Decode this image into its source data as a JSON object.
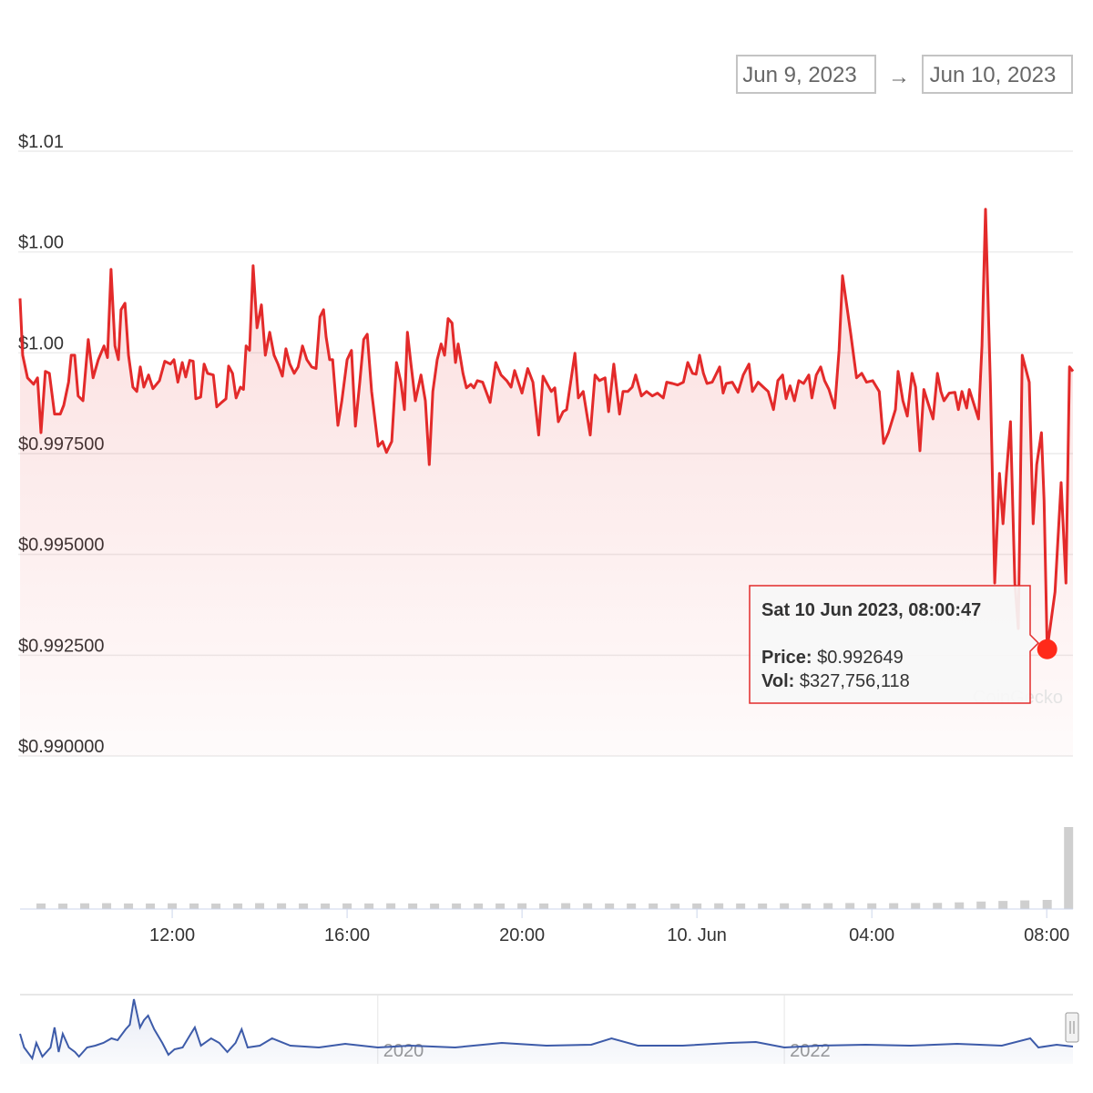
{
  "chart_data": {
    "type": "line",
    "date_range": {
      "from": "Jun 9, 2023",
      "separator": "→",
      "to": "Jun 10, 2023"
    },
    "color": "#e32a2a",
    "xlim": [
      8.52,
      32.6
    ],
    "xticks": [
      {
        "value": 12,
        "label": "12:00"
      },
      {
        "value": 16,
        "label": "16:00"
      },
      {
        "value": 20,
        "label": "20:00"
      },
      {
        "value": 24,
        "label": "10. Jun"
      },
      {
        "value": 28,
        "label": "04:00"
      },
      {
        "value": 32,
        "label": "08:00"
      }
    ],
    "ylim": [
      0.99,
      1.005
    ],
    "yticks": [
      {
        "value": 0.99,
        "label": "$0.990000"
      },
      {
        "value": 0.9925,
        "label": "$0.992500"
      },
      {
        "value": 0.995,
        "label": "$0.995000"
      },
      {
        "value": 0.9975,
        "label": "$0.997500"
      },
      {
        "value": 1.0,
        "label": "$1.00"
      },
      {
        "value": 1.0025,
        "label": "$1.00"
      },
      {
        "value": 1.005,
        "label": "$1.01"
      }
    ],
    "grid": true,
    "x": [
      8.52,
      8.58,
      8.69,
      8.83,
      8.92,
      9.0,
      9.1,
      9.19,
      9.31,
      9.44,
      9.52,
      9.63,
      9.69,
      9.77,
      9.85,
      9.96,
      10.08,
      10.19,
      10.31,
      10.44,
      10.52,
      10.6,
      10.69,
      10.77,
      10.83,
      10.92,
      11.0,
      11.1,
      11.19,
      11.27,
      11.35,
      11.46,
      11.56,
      11.71,
      11.83,
      11.96,
      12.04,
      12.13,
      12.23,
      12.31,
      12.4,
      12.48,
      12.54,
      12.65,
      12.73,
      12.81,
      12.94,
      13.02,
      13.13,
      13.23,
      13.29,
      13.38,
      13.46,
      13.56,
      13.63,
      13.69,
      13.77,
      13.85,
      13.94,
      14.04,
      14.13,
      14.23,
      14.33,
      14.42,
      14.52,
      14.6,
      14.69,
      14.79,
      14.88,
      14.98,
      15.08,
      15.19,
      15.29,
      15.38,
      15.46,
      15.52,
      15.6,
      15.67,
      15.79,
      15.88,
      16.0,
      16.1,
      16.19,
      16.29,
      16.38,
      16.46,
      16.56,
      16.71,
      16.81,
      16.9,
      17.02,
      17.13,
      17.23,
      17.31,
      17.38,
      17.46,
      17.56,
      17.69,
      17.79,
      17.88,
      17.96,
      18.06,
      18.15,
      18.23,
      18.31,
      18.4,
      18.48,
      18.54,
      18.65,
      18.73,
      18.83,
      18.9,
      18.98,
      19.1,
      19.27,
      19.4,
      19.52,
      19.65,
      19.75,
      19.83,
      20.0,
      20.13,
      20.25,
      20.38,
      20.48,
      20.58,
      20.67,
      20.75,
      20.83,
      20.94,
      21.02,
      21.21,
      21.29,
      21.4,
      21.56,
      21.67,
      21.77,
      21.9,
      21.98,
      22.1,
      22.23,
      22.31,
      22.42,
      22.52,
      22.6,
      22.73,
      22.85,
      22.98,
      23.1,
      23.23,
      23.31,
      23.44,
      23.56,
      23.69,
      23.79,
      23.9,
      23.98,
      24.06,
      24.15,
      24.23,
      24.35,
      24.52,
      24.6,
      24.67,
      24.81,
      24.94,
      25.06,
      25.19,
      25.27,
      25.4,
      25.52,
      25.63,
      25.75,
      25.85,
      25.96,
      26.04,
      26.13,
      26.23,
      26.33,
      26.44,
      26.56,
      26.63,
      26.73,
      26.83,
      26.92,
      27.02,
      27.15,
      27.25,
      27.33,
      27.44,
      27.52,
      27.65,
      27.77,
      27.88,
      28.02,
      28.17,
      28.27,
      28.38,
      28.54,
      28.6,
      28.71,
      28.81,
      28.92,
      29.0,
      29.1,
      29.19,
      29.27,
      29.4,
      29.5,
      29.58,
      29.65,
      29.77,
      29.9,
      29.98,
      30.06,
      30.17,
      30.23,
      30.31,
      30.44,
      30.52,
      30.6,
      30.71,
      30.81,
      30.92,
      31.0,
      31.08,
      31.17,
      31.27,
      31.35,
      31.44,
      31.6,
      31.69,
      31.77,
      31.88,
      31.94,
      32.01,
      32.19,
      32.33,
      32.44,
      32.52,
      32.6
    ],
    "values": [
      1.00135,
      0.99994,
      0.99938,
      0.99922,
      0.99938,
      0.99802,
      0.99954,
      0.99949,
      0.99848,
      0.99848,
      0.9987,
      0.99927,
      0.99994,
      0.99994,
      0.99893,
      0.99881,
      1.00033,
      0.99938,
      0.99983,
      1.00017,
      0.99988,
      1.00207,
      1.00017,
      0.99983,
      1.00107,
      1.00123,
      0.99994,
      0.99915,
      0.99904,
      0.99965,
      0.99915,
      0.99945,
      0.99911,
      0.99931,
      0.99979,
      0.99972,
      0.99983,
      0.99927,
      0.99976,
      0.9994,
      0.99981,
      0.99979,
      0.99886,
      0.9989,
      0.99972,
      0.99949,
      0.99945,
      0.99866,
      0.99877,
      0.99886,
      0.99967,
      0.99949,
      0.99888,
      0.99915,
      0.99909,
      1.00017,
      1.00006,
      1.00216,
      1.00062,
      1.00119,
      0.99994,
      1.00051,
      0.99994,
      0.99972,
      0.99942,
      1.0001,
      0.99972,
      0.99949,
      0.99965,
      1.00017,
      0.99983,
      0.99965,
      0.99961,
      1.00089,
      1.00107,
      1.0004,
      0.99983,
      0.99983,
      0.9982,
      0.99881,
      0.99983,
      1.00006,
      0.99818,
      0.99927,
      1.00033,
      1.00046,
      0.99904,
      0.99768,
      0.9978,
      0.99753,
      0.9978,
      0.99976,
      0.99927,
      0.99859,
      1.00051,
      0.99972,
      0.99881,
      0.99945,
      0.99881,
      0.99723,
      0.99904,
      0.99983,
      1.00022,
      0.99994,
      1.00085,
      1.00074,
      0.99976,
      1.00022,
      0.99949,
      0.99913,
      0.99922,
      0.99913,
      0.99931,
      0.99927,
      0.99877,
      0.99976,
      0.99945,
      0.99931,
      0.99915,
      0.99956,
      0.999,
      0.99961,
      0.99927,
      0.99796,
      0.99942,
      0.99922,
      0.99904,
      0.99913,
      0.99829,
      0.99854,
      0.99859,
      0.99999,
      0.99888,
      0.99904,
      0.99796,
      0.99945,
      0.99931,
      0.99938,
      0.99854,
      0.99972,
      0.99848,
      0.99904,
      0.99904,
      0.99915,
      0.99945,
      0.99893,
      0.99904,
      0.99893,
      0.999,
      0.99888,
      0.99927,
      0.99924,
      0.9992,
      0.99927,
      0.99976,
      0.99949,
      0.99947,
      0.99994,
      0.99949,
      0.99924,
      0.99927,
      0.99965,
      0.999,
      0.99924,
      0.99927,
      0.99902,
      0.99945,
      0.99972,
      0.99904,
      0.99927,
      0.99915,
      0.99904,
      0.99859,
      0.99931,
      0.99945,
      0.99886,
      0.99918,
      0.99881,
      0.99931,
      0.99924,
      0.99945,
      0.99888,
      0.99945,
      0.99965,
      0.99931,
      0.99909,
      0.99863,
      1.00006,
      1.00191,
      1.00107,
      1.00046,
      0.99938,
      0.99949,
      0.99927,
      0.99931,
      0.99904,
      0.99775,
      0.99802,
      0.99859,
      0.99954,
      0.99881,
      0.99843,
      0.99949,
      0.99915,
      0.99757,
      0.99909,
      0.99881,
      0.99836,
      0.99949,
      0.99904,
      0.99881,
      0.999,
      0.99902,
      0.99859,
      0.99904,
      0.99863,
      0.99909,
      0.99881,
      0.99836,
      1.00017,
      1.00356,
      0.99927,
      0.99429,
      0.99701,
      0.99576,
      0.99701,
      0.99829,
      0.99429,
      0.99316,
      0.99994,
      0.99927,
      0.99576,
      0.99723,
      0.99802,
      0.99633,
      0.992649,
      0.99407,
      0.99678,
      0.99429,
      0.99965,
      0.99954
    ],
    "volume": {
      "color": "#cfcfcf",
      "x": [
        9.0,
        9.5,
        10.0,
        10.5,
        11.0,
        11.5,
        12.0,
        12.5,
        13.0,
        13.5,
        14.0,
        14.5,
        15.0,
        15.5,
        16.0,
        16.5,
        17.0,
        17.5,
        18.0,
        18.5,
        19.0,
        19.5,
        20.0,
        20.5,
        21.0,
        21.5,
        22.0,
        22.5,
        23.0,
        23.5,
        24.0,
        24.5,
        25.0,
        25.5,
        26.0,
        26.5,
        27.0,
        27.5,
        28.0,
        28.5,
        29.0,
        29.5,
        30.0,
        30.5,
        31.0,
        31.5,
        32.01,
        32.5
      ],
      "values": [
        200000000,
        195000000,
        205000000,
        210000000,
        200000000,
        198000000,
        205000000,
        200000000,
        195000000,
        200000000,
        210000000,
        205000000,
        200000000,
        198000000,
        202000000,
        200000000,
        205000000,
        200000000,
        195000000,
        200000000,
        198000000,
        200000000,
        205000000,
        200000000,
        210000000,
        205000000,
        200000000,
        198000000,
        200000000,
        195000000,
        200000000,
        205000000,
        200000000,
        198000000,
        205000000,
        200000000,
        210000000,
        215000000,
        205000000,
        210000000,
        215000000,
        220000000,
        240000000,
        270000000,
        290000000,
        310000000,
        327756118,
        2950000000
      ]
    },
    "tooltip": {
      "title": "Sat 10 Jun 2023, 08:00:47",
      "price_label": "Price:",
      "price": "$0.992649",
      "vol_label": "Vol:",
      "vol": "$327,756,118"
    },
    "watermark": "CoinGecko",
    "navigator": {
      "color": "#3d5ba9",
      "xlim": [
        2018.24,
        2023.42
      ],
      "ylim": [
        0.97,
        1.07
      ],
      "xticks": [
        {
          "value": 2020,
          "label": "2020"
        },
        {
          "value": 2022,
          "label": "2022"
        }
      ],
      "x": [
        2018.24,
        2018.26,
        2018.3,
        2018.32,
        2018.35,
        2018.39,
        2018.41,
        2018.43,
        2018.45,
        2018.48,
        2018.51,
        2018.53,
        2018.57,
        2018.61,
        2018.65,
        2018.69,
        2018.72,
        2018.76,
        2018.78,
        2018.8,
        2018.83,
        2018.85,
        2018.87,
        2018.9,
        2018.94,
        2018.97,
        2019.0,
        2019.04,
        2019.08,
        2019.1,
        2019.13,
        2019.18,
        2019.22,
        2019.26,
        2019.3,
        2019.33,
        2019.36,
        2019.42,
        2019.48,
        2019.57,
        2019.71,
        2019.84,
        2020.0,
        2020.16,
        2020.38,
        2020.61,
        2020.83,
        2021.05,
        2021.15,
        2021.28,
        2021.5,
        2021.73,
        2021.86,
        2022.0,
        2022.17,
        2022.4,
        2022.62,
        2022.85,
        2023.07,
        2023.21,
        2023.25,
        2023.34,
        2023.42
      ],
      "values": [
        1.0134,
        0.9937,
        0.9779,
        1.0003,
        0.9805,
        0.9937,
        1.0226,
        0.9871,
        1.0134,
        0.9937,
        0.9871,
        0.9805,
        0.9937,
        0.9963,
        1.0003,
        1.0068,
        1.0042,
        1.02,
        1.0266,
        1.0634,
        1.0226,
        1.0332,
        1.0397,
        1.02,
        1.0003,
        0.9832,
        0.9911,
        0.9937,
        1.0134,
        1.0226,
        0.9963,
        1.0068,
        1.0003,
        0.9871,
        1.0003,
        1.02,
        0.9937,
        0.9963,
        1.0068,
        0.9963,
        0.9937,
        0.9989,
        0.9937,
        0.9963,
        0.9937,
        1.0003,
        0.9963,
        0.9976,
        1.0068,
        0.9963,
        0.9963,
        1.0003,
        1.0016,
        0.9937,
        0.9963,
        0.9976,
        0.9963,
        0.9989,
        0.9963,
        1.0068,
        0.9937,
        0.9976,
        0.995
      ]
    }
  }
}
